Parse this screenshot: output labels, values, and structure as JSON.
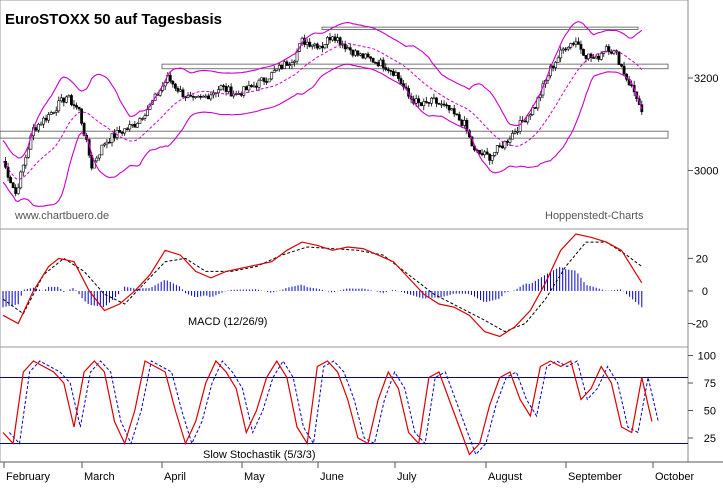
{
  "title": "EuroSTOXX 50 auf Tagesbasis",
  "watermark_left": "www.chartbuero.de",
  "watermark_right": "Hoppenstedt-Charts",
  "colors": {
    "candle": "#000000",
    "bollinger": "#cc00cc",
    "moving_average": "#cc00cc",
    "support_lines": "#555555",
    "macd_line": "#dd0000",
    "signal_line": "#000000",
    "histogram": "#0000cc",
    "stoch_k": "#dd0000",
    "stoch_d": "#0000cc",
    "stoch_levels": "#0000aa"
  },
  "chart_data": [
    {
      "type": "candlestick",
      "name": "price",
      "y_ticks": [
        3000,
        3200
      ],
      "ylim": [
        2880,
        3360
      ],
      "x_months": [
        "February",
        "March",
        "April",
        "May",
        "June",
        "July",
        "August",
        "September",
        "October"
      ],
      "horizontal_levels": [
        3070,
        3085,
        3220,
        3230,
        3305,
        3310
      ],
      "close_trajectory_days": [
        [
          0,
          3020
        ],
        [
          5,
          2950
        ],
        [
          12,
          3090
        ],
        [
          18,
          3120
        ],
        [
          25,
          3160
        ],
        [
          30,
          3130
        ],
        [
          35,
          3010
        ],
        [
          40,
          3060
        ],
        [
          45,
          3080
        ],
        [
          52,
          3100
        ],
        [
          58,
          3140
        ],
        [
          65,
          3200
        ],
        [
          70,
          3170
        ],
        [
          75,
          3150
        ],
        [
          80,
          3160
        ],
        [
          86,
          3180
        ],
        [
          92,
          3165
        ],
        [
          98,
          3180
        ],
        [
          104,
          3200
        ],
        [
          110,
          3225
        ],
        [
          115,
          3245
        ],
        [
          118,
          3280
        ],
        [
          122,
          3275
        ],
        [
          126,
          3270
        ],
        [
          130,
          3295
        ],
        [
          135,
          3270
        ],
        [
          140,
          3250
        ],
        [
          145,
          3240
        ],
        [
          150,
          3230
        ],
        [
          155,
          3210
        ],
        [
          160,
          3160
        ],
        [
          165,
          3140
        ],
        [
          170,
          3150
        ],
        [
          176,
          3130
        ],
        [
          182,
          3100
        ],
        [
          186,
          3040
        ],
        [
          192,
          3030
        ],
        [
          198,
          3060
        ],
        [
          204,
          3100
        ],
        [
          210,
          3140
        ],
        [
          216,
          3220
        ],
        [
          222,
          3270
        ],
        [
          226,
          3280
        ],
        [
          230,
          3250
        ],
        [
          234,
          3240
        ],
        [
          238,
          3270
        ],
        [
          242,
          3250
        ],
        [
          246,
          3200
        ],
        [
          250,
          3160
        ],
        [
          252,
          3120
        ]
      ]
    },
    {
      "type": "line",
      "name": "macd",
      "label": "MACD (12/26/9)",
      "y_ticks": [
        20,
        0,
        -20
      ],
      "ylim": [
        -32,
        35
      ],
      "macd_points": [
        [
          0,
          -15
        ],
        [
          6,
          -20
        ],
        [
          12,
          0
        ],
        [
          18,
          15
        ],
        [
          22,
          20
        ],
        [
          28,
          18
        ],
        [
          34,
          0
        ],
        [
          40,
          -12
        ],
        [
          46,
          -8
        ],
        [
          52,
          0
        ],
        [
          58,
          10
        ],
        [
          64,
          25
        ],
        [
          70,
          22
        ],
        [
          76,
          12
        ],
        [
          82,
          8
        ],
        [
          88,
          12
        ],
        [
          94,
          14
        ],
        [
          100,
          16
        ],
        [
          106,
          18
        ],
        [
          112,
          25
        ],
        [
          118,
          30
        ],
        [
          124,
          28
        ],
        [
          130,
          25
        ],
        [
          136,
          27
        ],
        [
          142,
          26
        ],
        [
          148,
          22
        ],
        [
          154,
          18
        ],
        [
          160,
          8
        ],
        [
          166,
          -2
        ],
        [
          172,
          -8
        ],
        [
          178,
          -10
        ],
        [
          184,
          -15
        ],
        [
          190,
          -25
        ],
        [
          196,
          -28
        ],
        [
          202,
          -22
        ],
        [
          208,
          -12
        ],
        [
          214,
          5
        ],
        [
          220,
          25
        ],
        [
          226,
          35
        ],
        [
          232,
          33
        ],
        [
          238,
          30
        ],
        [
          244,
          25
        ],
        [
          250,
          10
        ],
        [
          252,
          5
        ]
      ],
      "signal_points": [
        [
          0,
          -5
        ],
        [
          8,
          -14
        ],
        [
          16,
          10
        ],
        [
          24,
          20
        ],
        [
          32,
          12
        ],
        [
          40,
          -2
        ],
        [
          48,
          -8
        ],
        [
          56,
          5
        ],
        [
          64,
          18
        ],
        [
          72,
          20
        ],
        [
          80,
          12
        ],
        [
          90,
          12
        ],
        [
          100,
          15
        ],
        [
          110,
          22
        ],
        [
          120,
          27
        ],
        [
          130,
          26
        ],
        [
          140,
          25
        ],
        [
          150,
          22
        ],
        [
          160,
          10
        ],
        [
          170,
          -2
        ],
        [
          180,
          -10
        ],
        [
          190,
          -18
        ],
        [
          198,
          -25
        ],
        [
          206,
          -20
        ],
        [
          214,
          -5
        ],
        [
          222,
          15
        ],
        [
          230,
          30
        ],
        [
          238,
          30
        ],
        [
          246,
          22
        ],
        [
          252,
          15
        ]
      ]
    },
    {
      "type": "line",
      "name": "slow_stochastic",
      "label": "Slow Stochastik (5/3/3)",
      "y_ticks": [
        100,
        75,
        50,
        25
      ],
      "ylim": [
        5,
        105
      ],
      "levels": [
        80,
        20
      ],
      "k_points": [
        [
          0,
          30
        ],
        [
          4,
          20
        ],
        [
          8,
          85
        ],
        [
          12,
          95
        ],
        [
          16,
          90
        ],
        [
          20,
          85
        ],
        [
          24,
          75
        ],
        [
          28,
          35
        ],
        [
          32,
          85
        ],
        [
          36,
          95
        ],
        [
          40,
          85
        ],
        [
          44,
          40
        ],
        [
          48,
          20
        ],
        [
          52,
          50
        ],
        [
          56,
          95
        ],
        [
          60,
          90
        ],
        [
          64,
          85
        ],
        [
          68,
          50
        ],
        [
          72,
          20
        ],
        [
          76,
          40
        ],
        [
          80,
          75
        ],
        [
          84,
          95
        ],
        [
          88,
          85
        ],
        [
          92,
          70
        ],
        [
          96,
          30
        ],
        [
          100,
          50
        ],
        [
          104,
          80
        ],
        [
          108,
          95
        ],
        [
          112,
          80
        ],
        [
          116,
          35
        ],
        [
          120,
          20
        ],
        [
          124,
          90
        ],
        [
          128,
          95
        ],
        [
          132,
          85
        ],
        [
          136,
          60
        ],
        [
          140,
          25
        ],
        [
          144,
          20
        ],
        [
          148,
          60
        ],
        [
          152,
          85
        ],
        [
          156,
          70
        ],
        [
          160,
          30
        ],
        [
          164,
          20
        ],
        [
          168,
          80
        ],
        [
          172,
          85
        ],
        [
          176,
          60
        ],
        [
          180,
          35
        ],
        [
          184,
          10
        ],
        [
          188,
          20
        ],
        [
          192,
          55
        ],
        [
          196,
          80
        ],
        [
          200,
          85
        ],
        [
          204,
          60
        ],
        [
          208,
          45
        ],
        [
          212,
          90
        ],
        [
          216,
          95
        ],
        [
          220,
          90
        ],
        [
          224,
          95
        ],
        [
          228,
          60
        ],
        [
          232,
          70
        ],
        [
          236,
          90
        ],
        [
          240,
          75
        ],
        [
          244,
          35
        ],
        [
          248,
          30
        ],
        [
          252,
          80
        ],
        [
          256,
          40
        ]
      ]
    }
  ]
}
